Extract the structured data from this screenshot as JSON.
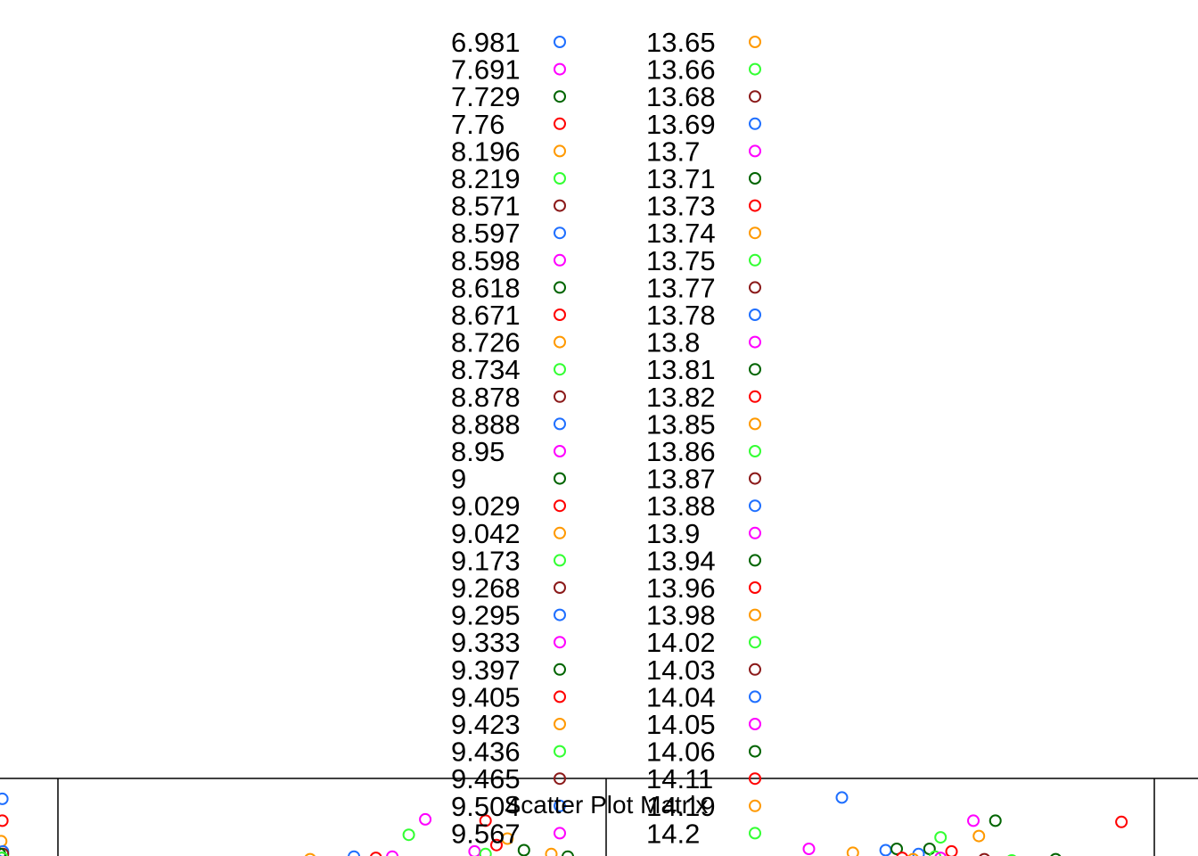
{
  "chart_data": {
    "type": "scatter",
    "title": "Scatter Plot Matrix",
    "legend": {
      "placement": "top-center",
      "columns": [
        {
          "labels": [
            "6.981",
            "7.691",
            "7.729",
            "7.76",
            "8.196",
            "8.219",
            "8.571",
            "8.597",
            "8.598",
            "8.618",
            "8.671",
            "8.726",
            "8.734",
            "8.878",
            "8.888",
            "8.95",
            "9",
            "9.029",
            "9.042",
            "9.173",
            "9.268",
            "9.295",
            "9.333",
            "9.397",
            "9.405",
            "9.423",
            "9.436",
            "9.465",
            "9.504",
            "9.567"
          ],
          "colors": [
            "#1f6fff",
            "#ff00ff",
            "#006400",
            "#ff0000",
            "#ff9900",
            "#33ff33",
            "#8b1a1a",
            "#1f6fff",
            "#ff00ff",
            "#006400",
            "#ff0000",
            "#ff9900",
            "#33ff33",
            "#8b1a1a",
            "#1f6fff",
            "#ff00ff",
            "#006400",
            "#ff0000",
            "#ff9900",
            "#33ff33",
            "#8b1a1a",
            "#1f6fff",
            "#ff00ff",
            "#006400",
            "#ff0000",
            "#ff9900",
            "#33ff33",
            "#8b1a1a",
            "#1f6fff",
            "#ff00ff"
          ]
        },
        {
          "labels": [
            "13.65",
            "13.66",
            "13.68",
            "13.69",
            "13.7",
            "13.71",
            "13.73",
            "13.74",
            "13.75",
            "13.77",
            "13.78",
            "13.8",
            "13.81",
            "13.82",
            "13.85",
            "13.86",
            "13.87",
            "13.88",
            "13.9",
            "13.94",
            "13.96",
            "13.98",
            "14.02",
            "14.03",
            "14.04",
            "14.05",
            "14.06",
            "14.11",
            "14.19",
            "14.2"
          ],
          "colors": [
            "#ff9900",
            "#33ff33",
            "#8b1a1a",
            "#1f6fff",
            "#ff00ff",
            "#006400",
            "#ff0000",
            "#ff9900",
            "#33ff33",
            "#8b1a1a",
            "#1f6fff",
            "#ff00ff",
            "#006400",
            "#ff0000",
            "#ff9900",
            "#33ff33",
            "#8b1a1a",
            "#1f6fff",
            "#ff00ff",
            "#006400",
            "#ff0000",
            "#ff9900",
            "#33ff33",
            "#8b1a1a",
            "#1f6fff",
            "#ff00ff",
            "#006400",
            "#ff0000",
            "#ff9900",
            "#33ff33"
          ]
        }
      ]
    },
    "panels": [
      {
        "name": "left",
        "points": [
          {
            "x": 0.04,
            "y": 0.48,
            "color": "#1f6fff"
          },
          {
            "x": 0.04,
            "y": 0.31,
            "color": "#ff0000"
          },
          {
            "x": 0.02,
            "y": 0.15,
            "color": "#ff9900"
          },
          {
            "x": 0.05,
            "y": 0.07,
            "color": "#1f6fff"
          },
          {
            "x": 0.05,
            "y": 0.05,
            "color": "#8b1a1a"
          },
          {
            "x": 0.0,
            "y": 0.05,
            "color": "#006400"
          },
          {
            "x": 0.03,
            "y": 0.02,
            "color": "#006400"
          },
          {
            "x": 0.04,
            "y": 0.02,
            "color": "#33ff33"
          }
        ]
      },
      {
        "name": "center",
        "points": [
          {
            "x": 0.67,
            "y": 0.32,
            "color": "#ff00ff"
          },
          {
            "x": 0.64,
            "y": 0.2,
            "color": "#33ff33"
          },
          {
            "x": 0.78,
            "y": 0.31,
            "color": "#ff0000"
          },
          {
            "x": 0.82,
            "y": 0.17,
            "color": "#ff9900"
          },
          {
            "x": 0.85,
            "y": 0.08,
            "color": "#006400"
          },
          {
            "x": 0.8,
            "y": 0.12,
            "color": "#ff0000"
          },
          {
            "x": 0.76,
            "y": 0.07,
            "color": "#ff00ff"
          },
          {
            "x": 0.78,
            "y": 0.05,
            "color": "#33ff33"
          },
          {
            "x": 0.9,
            "y": 0.05,
            "color": "#ff9900"
          },
          {
            "x": 0.93,
            "y": 0.03,
            "color": "#006400"
          },
          {
            "x": 0.58,
            "y": 0.02,
            "color": "#ff0000"
          },
          {
            "x": 0.61,
            "y": 0.03,
            "color": "#ff00ff"
          },
          {
            "x": 0.54,
            "y": 0.03,
            "color": "#1f6fff"
          },
          {
            "x": 0.46,
            "y": 0.01,
            "color": "#ff9900"
          }
        ]
      },
      {
        "name": "right",
        "points": [
          {
            "x": 0.43,
            "y": 0.49,
            "color": "#1f6fff"
          },
          {
            "x": 0.94,
            "y": 0.3,
            "color": "#ff0000"
          },
          {
            "x": 0.67,
            "y": 0.31,
            "color": "#ff00ff"
          },
          {
            "x": 0.71,
            "y": 0.31,
            "color": "#006400"
          },
          {
            "x": 0.68,
            "y": 0.19,
            "color": "#ff9900"
          },
          {
            "x": 0.61,
            "y": 0.18,
            "color": "#33ff33"
          },
          {
            "x": 0.37,
            "y": 0.09,
            "color": "#ff00ff"
          },
          {
            "x": 0.45,
            "y": 0.06,
            "color": "#ff9900"
          },
          {
            "x": 0.51,
            "y": 0.08,
            "color": "#1f6fff"
          },
          {
            "x": 0.53,
            "y": 0.09,
            "color": "#006400"
          },
          {
            "x": 0.59,
            "y": 0.09,
            "color": "#006400"
          },
          {
            "x": 0.63,
            "y": 0.07,
            "color": "#ff0000"
          },
          {
            "x": 0.57,
            "y": 0.05,
            "color": "#1f6fff"
          },
          {
            "x": 0.6,
            "y": 0.03,
            "color": "#33ff33"
          },
          {
            "x": 0.54,
            "y": 0.02,
            "color": "#ff0000"
          },
          {
            "x": 0.56,
            "y": 0.01,
            "color": "#ff9900"
          },
          {
            "x": 0.61,
            "y": 0.02,
            "color": "#ff00ff"
          },
          {
            "x": 0.69,
            "y": 0.01,
            "color": "#8b1a1a"
          },
          {
            "x": 0.74,
            "y": 0.0,
            "color": "#33ff33"
          },
          {
            "x": 0.82,
            "y": 0.01,
            "color": "#006400"
          }
        ]
      }
    ]
  }
}
